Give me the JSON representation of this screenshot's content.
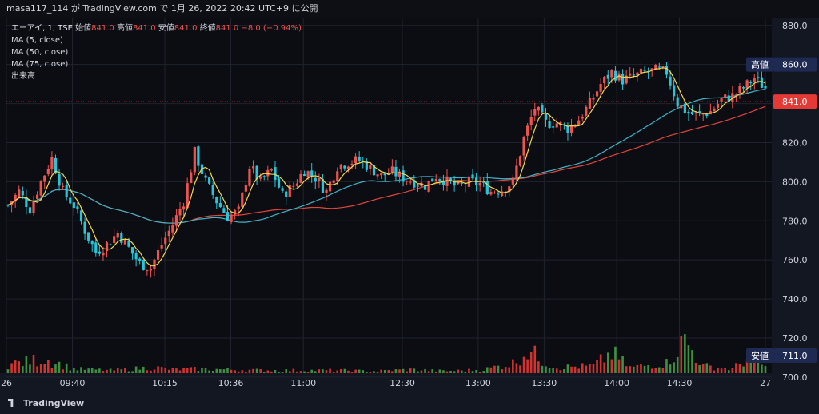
{
  "header": {
    "text": "masa117_114 が TradingView.com で 1月 26, 2022 20:42 UTC+9 に公開"
  },
  "legend": {
    "symbol": "エーアイ, 1, TSE",
    "open_label": "始値",
    "open": "841.0",
    "high_label": "高値",
    "high": "841.0",
    "low_label": "安値",
    "low": "841.0",
    "close_label": "終値",
    "close": "841.0",
    "change": "−8.0 (−0.94%)",
    "ma5": "MA (5, close)",
    "ma50": "MA (50, close)",
    "ma75": "MA (75, close)",
    "volume": "出来高"
  },
  "footer": {
    "brand": "TradingView"
  },
  "colors": {
    "up": "#ef5350",
    "down": "#26c6da",
    "vol_up": "#e53935",
    "vol_down": "#43a047",
    "ma5": "#f2d94e",
    "ma50": "#3fb4c9",
    "ma75": "#e0463c",
    "grid": "#1f232d",
    "axis_bg": "#131722",
    "tag_bg": "#1e2a52",
    "price_tag": "#e53935"
  },
  "chart_data": {
    "type": "candlestick",
    "y_axis": {
      "ticks": [
        "880.0",
        "860.0",
        "840.0",
        "820.0",
        "800.0",
        "780.0",
        "760.0",
        "740.0",
        "720.0",
        "700.0"
      ],
      "range": [
        702,
        884
      ]
    },
    "x_axis": {
      "ticks": [
        "26",
        "09:40",
        "10:15",
        "10:36",
        "11:00",
        "12:30",
        "13:00",
        "13:30",
        "14:00",
        "14:30",
        "27"
      ]
    },
    "tags": {
      "high": {
        "label": "高値",
        "value": "860.0"
      },
      "last": {
        "value": "841.0"
      },
      "low": {
        "label": "安値",
        "value": "711.0"
      }
    },
    "price_path": [
      [
        0,
        788
      ],
      [
        3,
        795
      ],
      [
        6,
        786
      ],
      [
        9,
        800
      ],
      [
        12,
        812
      ],
      [
        15,
        795
      ],
      [
        18,
        788
      ],
      [
        21,
        775
      ],
      [
        24,
        764
      ],
      [
        27,
        768
      ],
      [
        30,
        774
      ],
      [
        33,
        766
      ],
      [
        36,
        758
      ],
      [
        39,
        756
      ],
      [
        42,
        768
      ],
      [
        45,
        778
      ],
      [
        48,
        790
      ],
      [
        51,
        815
      ],
      [
        54,
        800
      ],
      [
        57,
        790
      ],
      [
        60,
        782
      ],
      [
        63,
        785
      ],
      [
        66,
        808
      ],
      [
        69,
        800
      ],
      [
        72,
        806
      ],
      [
        75,
        793
      ],
      [
        78,
        798
      ],
      [
        81,
        806
      ],
      [
        84,
        802
      ],
      [
        87,
        795
      ],
      [
        90,
        808
      ],
      [
        93,
        810
      ],
      [
        96,
        811
      ],
      [
        99,
        807
      ],
      [
        102,
        803
      ],
      [
        105,
        805
      ],
      [
        108,
        802
      ],
      [
        111,
        800
      ],
      [
        114,
        798
      ],
      [
        117,
        803
      ],
      [
        120,
        800
      ],
      [
        123,
        797
      ],
      [
        126,
        800
      ],
      [
        129,
        799
      ],
      [
        132,
        795
      ],
      [
        135,
        796
      ],
      [
        138,
        800
      ],
      [
        141,
        822
      ],
      [
        144,
        838
      ],
      [
        147,
        830
      ],
      [
        150,
        830
      ],
      [
        153,
        827
      ],
      [
        156,
        832
      ],
      [
        159,
        840
      ],
      [
        162,
        850
      ],
      [
        165,
        856
      ],
      [
        168,
        852
      ],
      [
        171,
        854
      ],
      [
        174,
        856
      ],
      [
        177,
        857
      ],
      [
        180,
        856
      ],
      [
        183,
        840
      ],
      [
        186,
        835
      ],
      [
        189,
        834
      ],
      [
        192,
        836
      ],
      [
        195,
        842
      ],
      [
        198,
        844
      ],
      [
        201,
        848
      ],
      [
        204,
        853
      ],
      [
        207,
        848
      ]
    ],
    "volume_profile": [
      [
        0,
        12
      ],
      [
        10,
        20
      ],
      [
        18,
        6
      ],
      [
        28,
        4
      ],
      [
        40,
        8
      ],
      [
        45,
        5
      ],
      [
        52,
        6
      ],
      [
        60,
        5
      ],
      [
        70,
        4
      ],
      [
        80,
        4
      ],
      [
        90,
        4
      ],
      [
        100,
        3
      ],
      [
        110,
        5
      ],
      [
        120,
        3
      ],
      [
        130,
        5
      ],
      [
        138,
        14
      ],
      [
        142,
        32
      ],
      [
        146,
        18
      ],
      [
        150,
        8
      ],
      [
        160,
        10
      ],
      [
        165,
        28
      ],
      [
        170,
        8
      ],
      [
        180,
        14
      ],
      [
        185,
        46
      ],
      [
        190,
        10
      ],
      [
        198,
        6
      ],
      [
        203,
        24
      ],
      [
        207,
        8
      ]
    ]
  }
}
